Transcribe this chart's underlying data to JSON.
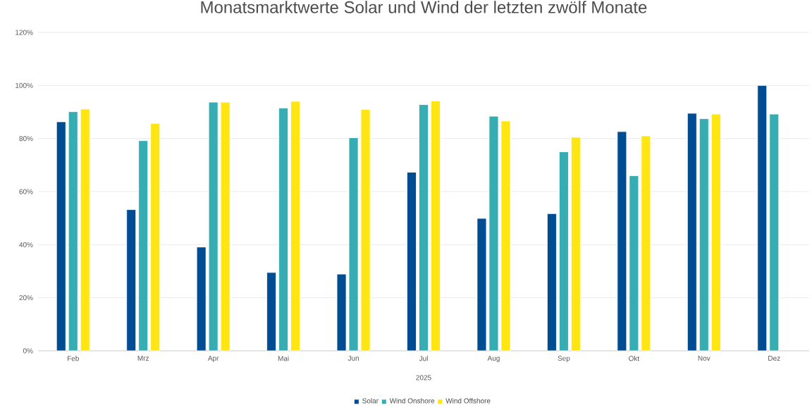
{
  "chart_data": {
    "type": "bar",
    "title": "Monatsmarktwerte Solar und Wind der letzten zwölf Monate",
    "xlabel": "2025",
    "categories": [
      "Feb",
      "Mrz",
      "Apr",
      "Mai",
      "Jun",
      "Jul",
      "Aug",
      "Sep",
      "Okt",
      "Nov",
      "Dez"
    ],
    "series": [
      {
        "name": "Solar",
        "color": "#004c93",
        "values": [
          86.3,
          53.2,
          39.1,
          29.5,
          28.9,
          67.3,
          49.9,
          51.7,
          82.6,
          89.5,
          100
        ]
      },
      {
        "name": "Wind Onshore",
        "color": "#36adb3",
        "values": [
          90.1,
          79.2,
          93.7,
          91.5,
          80.3,
          92.8,
          88.4,
          75.0,
          66.0,
          87.5,
          89.2
        ]
      },
      {
        "name": "Wind Offshore",
        "color": "#ffe512",
        "values": [
          91.1,
          85.7,
          93.7,
          94.0,
          91.0,
          94.2,
          86.6,
          80.5,
          81.0,
          89.2,
          null
        ]
      }
    ],
    "ylim": [
      0,
      120
    ],
    "yticks": [
      {
        "value": 0,
        "label": "0%"
      },
      {
        "value": 20,
        "label": "20%"
      },
      {
        "value": 40,
        "label": "40%"
      },
      {
        "value": 60,
        "label": "60%"
      },
      {
        "value": 80,
        "label": "80%"
      },
      {
        "value": 100,
        "label": "100%"
      },
      {
        "value": 120,
        "label": "120%"
      }
    ],
    "grid": "y",
    "legend": "bottom"
  }
}
